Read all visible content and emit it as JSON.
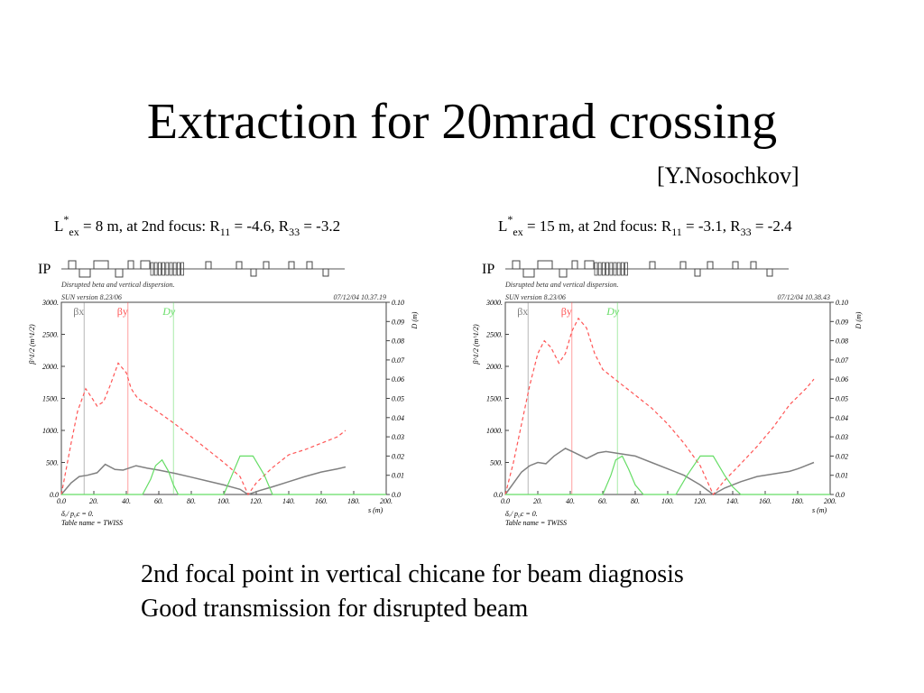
{
  "slide": {
    "title": "Extraction for 20mrad crossing",
    "author": "[Y.Nosochkov]",
    "bullets": [
      "2nd focal point in vertical chicane for beam diagnosis",
      "Good transmission for disrupted beam"
    ]
  },
  "colors": {
    "beta_x": "#808080",
    "beta_y": "#ff5555",
    "dispersion": "#66dd66"
  },
  "chart_data": [
    {
      "type": "line",
      "heading": {
        "pre": "L",
        "sup": "*",
        "sub": "ex",
        "post": " = 8 m, at 2nd focus: R",
        "r11_sub": "11",
        "r11_val": " = -4.6, R",
        "r33_sub": "33",
        "r33_val": " = -3.2"
      },
      "lattice_label": "IP",
      "caption": "Disrupted beta and vertical dispersion.",
      "version": "SUN version 8.23/06",
      "timestamp": "07/12/04  10.37.19",
      "ylabel": "β^1/2 (m^1/2)",
      "y2label": "D (m)",
      "xlabel": "s (m)",
      "footer": [
        "δₑ/ p₀c = 0.",
        "Table name = TWISS"
      ],
      "legend": [
        "βx 1/2",
        "βy 1/2",
        "Dy"
      ],
      "xlim": [
        0,
        200
      ],
      "ylim": [
        0,
        3000
      ],
      "y2lim": [
        0,
        0.1
      ],
      "xticks": [
        "0.0",
        "20.",
        "40.",
        "60.",
        "80.",
        "100.",
        "120.",
        "140.",
        "160.",
        "180.",
        "200."
      ],
      "yticks": [
        "0.0",
        "500.",
        "1000.",
        "1500.",
        "2000.",
        "2500.",
        "3000."
      ],
      "y2ticks": [
        "0.0",
        "0.01",
        "0.02",
        "0.03",
        "0.04",
        "0.05",
        "0.06",
        "0.07",
        "0.08",
        "0.09",
        "0.10"
      ],
      "markers": [
        14,
        41,
        69
      ],
      "series": [
        {
          "name": "βx 1/2",
          "color": "#808080",
          "dash": "none",
          "x": [
            0,
            6,
            11,
            16,
            22,
            27,
            33,
            38,
            46,
            53,
            60,
            70,
            80,
            90,
            100,
            110,
            115,
            122,
            130,
            140,
            150,
            160,
            170,
            175
          ],
          "y": [
            0,
            180,
            280,
            300,
            340,
            470,
            390,
            380,
            450,
            410,
            380,
            330,
            270,
            210,
            150,
            80,
            0,
            60,
            120,
            200,
            280,
            350,
            400,
            430
          ]
        },
        {
          "name": "βy 1/2",
          "color": "#ff5555",
          "dash": "4,3",
          "x": [
            0,
            6,
            10,
            15,
            19,
            22,
            26,
            30,
            35,
            40,
            43,
            47,
            52,
            60,
            70,
            80,
            90,
            100,
            110,
            115,
            120,
            130,
            140,
            150,
            160,
            170,
            175
          ],
          "y": [
            0,
            800,
            1300,
            1650,
            1500,
            1380,
            1450,
            1700,
            2050,
            1900,
            1650,
            1500,
            1420,
            1280,
            1100,
            900,
            700,
            500,
            280,
            0,
            180,
            420,
            620,
            700,
            800,
            900,
            1000
          ]
        },
        {
          "name": "Dy",
          "color": "#66dd66",
          "dash": "none",
          "x": [
            0,
            50,
            55,
            58,
            62,
            66,
            69,
            72,
            75,
            100,
            105,
            110,
            118,
            125,
            130,
            135,
            200
          ],
          "y": [
            0,
            0,
            0.008,
            0.015,
            0.018,
            0.012,
            0.005,
            0,
            0,
            0,
            0.01,
            0.02,
            0.02,
            0.01,
            0,
            0,
            0
          ]
        }
      ]
    },
    {
      "type": "line",
      "heading": {
        "pre": "L",
        "sup": "*",
        "sub": "ex",
        "post": " = 15 m, at 2nd focus: R",
        "r11_sub": "11",
        "r11_val": " = -3.1, R",
        "r33_sub": "33",
        "r33_val": " = -2.4"
      },
      "lattice_label": "IP",
      "caption": "Disrupted beta and vertical dispersion.",
      "version": "SUN version 8.23/06",
      "timestamp": "07/12/04  10.38.43",
      "ylabel": "β^1/2 (m^1/2)",
      "y2label": "D (m)",
      "xlabel": "s (m)",
      "footer": [
        "δₑ/ p₀c = 0.",
        "Table name = TWISS"
      ],
      "legend": [
        "βx 1/2",
        "βy 1/2",
        "Dy"
      ],
      "xlim": [
        0,
        200
      ],
      "ylim": [
        0,
        3000
      ],
      "y2lim": [
        0,
        0.1
      ],
      "xticks": [
        "0.0",
        "20.",
        "40.",
        "60.",
        "80.",
        "100.",
        "120.",
        "140.",
        "160.",
        "180.",
        "200."
      ],
      "yticks": [
        "0.0",
        "500.",
        "1000.",
        "1500.",
        "2000.",
        "2500.",
        "3000."
      ],
      "y2ticks": [
        "0.0",
        "0.01",
        "0.02",
        "0.03",
        "0.04",
        "0.05",
        "0.06",
        "0.07",
        "0.08",
        "0.09",
        "0.10"
      ],
      "markers": [
        14,
        41,
        69
      ],
      "series": [
        {
          "name": "βx 1/2",
          "color": "#808080",
          "dash": "none",
          "x": [
            0,
            10,
            15,
            20,
            25,
            30,
            37,
            43,
            50,
            57,
            62,
            70,
            80,
            90,
            100,
            110,
            120,
            128,
            135,
            145,
            155,
            165,
            175,
            180,
            185,
            190
          ],
          "y": [
            0,
            350,
            450,
            500,
            480,
            600,
            720,
            650,
            560,
            650,
            670,
            640,
            600,
            500,
            400,
            300,
            150,
            0,
            100,
            200,
            280,
            320,
            360,
            400,
            450,
            500
          ]
        },
        {
          "name": "βy 1/2",
          "color": "#ff5555",
          "dash": "4,3",
          "x": [
            0,
            5,
            10,
            15,
            20,
            24,
            28,
            33,
            37,
            41,
            45,
            50,
            55,
            60,
            70,
            80,
            90,
            100,
            110,
            120,
            128,
            135,
            145,
            155,
            165,
            175,
            185,
            190
          ],
          "y": [
            0,
            500,
            1100,
            1700,
            2200,
            2400,
            2300,
            2050,
            2200,
            2550,
            2750,
            2600,
            2200,
            1950,
            1750,
            1550,
            1350,
            1100,
            800,
            450,
            0,
            220,
            480,
            750,
            1050,
            1400,
            1650,
            1800
          ]
        },
        {
          "name": "Dy",
          "color": "#66dd66",
          "dash": "none",
          "x": [
            0,
            60,
            65,
            68,
            72,
            76,
            80,
            85,
            105,
            112,
            120,
            128,
            135,
            140,
            145,
            200
          ],
          "y": [
            0,
            0,
            0.01,
            0.018,
            0.02,
            0.013,
            0.005,
            0,
            0,
            0.01,
            0.02,
            0.02,
            0.01,
            0.004,
            0,
            0
          ]
        }
      ]
    }
  ]
}
